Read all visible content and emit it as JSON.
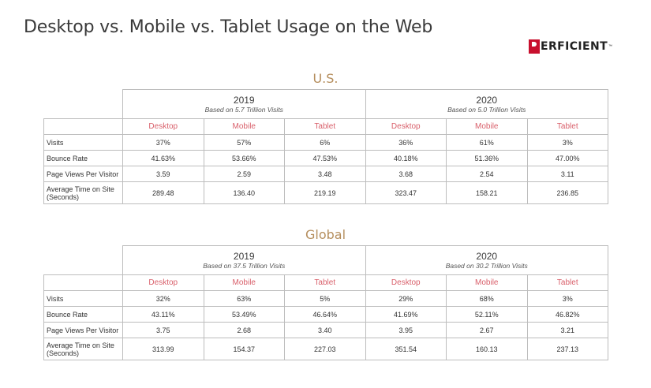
{
  "title": "Desktop vs. Mobile vs. Tablet Usage on the Web",
  "logo": {
    "text": "ERFICIENT",
    "tm": "™",
    "brand_color": "#c8102e"
  },
  "colors": {
    "section_title": "#b58e5d",
    "device_header": "#d9606b"
  },
  "devices": [
    "Desktop",
    "Mobile",
    "Tablet"
  ],
  "sections": [
    {
      "name": "U.S.",
      "years": [
        {
          "year": "2019",
          "basis": "Based on 5.7 Trillion Visits"
        },
        {
          "year": "2020",
          "basis": "Based on 5.0 Trillion Visits"
        }
      ],
      "rows": [
        {
          "label": "Visits",
          "values": [
            "37%",
            "57%",
            "6%",
            "36%",
            "61%",
            "3%"
          ]
        },
        {
          "label": "Bounce Rate",
          "values": [
            "41.63%",
            "53.66%",
            "47.53%",
            "40.18%",
            "51.36%",
            "47.00%"
          ]
        },
        {
          "label": "Page Views Per Visitor",
          "values": [
            "3.59",
            "2.59",
            "3.48",
            "3.68",
            "2.54",
            "3.11"
          ]
        },
        {
          "label": "Average Time on Site",
          "label2": "(Seconds)",
          "values": [
            "289.48",
            "136.40",
            "219.19",
            "323.47",
            "158.21",
            "236.85"
          ]
        }
      ]
    },
    {
      "name": "Global",
      "years": [
        {
          "year": "2019",
          "basis": "Based on 37.5 Trillion Visits"
        },
        {
          "year": "2020",
          "basis": "Based on 30.2 Trillion Visits"
        }
      ],
      "rows": [
        {
          "label": "Visits",
          "values": [
            "32%",
            "63%",
            "5%",
            "29%",
            "68%",
            "3%"
          ]
        },
        {
          "label": "Bounce Rate",
          "values": [
            "43.11%",
            "53.49%",
            "46.64%",
            "41.69%",
            "52.11%",
            "46.82%"
          ]
        },
        {
          "label": "Page Views Per Visitor",
          "values": [
            "3.75",
            "2.68",
            "3.40",
            "3.95",
            "2.67",
            "3.21"
          ]
        },
        {
          "label": "Average Time on Site",
          "label2": "(Seconds)",
          "values": [
            "313.99",
            "154.37",
            "227.03",
            "351.54",
            "160.13",
            "237.13"
          ]
        }
      ]
    }
  ]
}
